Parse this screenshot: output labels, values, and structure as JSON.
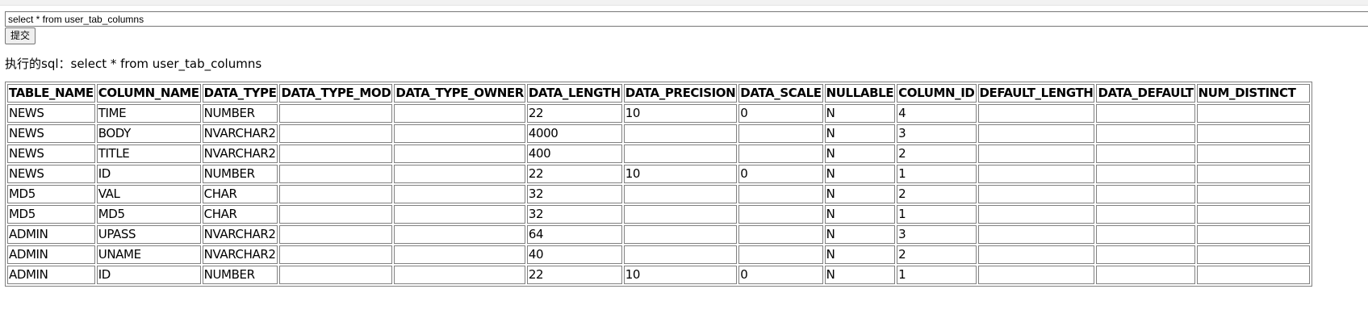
{
  "form": {
    "sql_value": "select * from user_tab_columns",
    "submit_label": "提交"
  },
  "executed": {
    "label": "执行的sql：",
    "query": "select * from user_tab_columns"
  },
  "table": {
    "columns": [
      "TABLE_NAME",
      "COLUMN_NAME",
      "DATA_TYPE",
      "DATA_TYPE_MOD",
      "DATA_TYPE_OWNER",
      "DATA_LENGTH",
      "DATA_PRECISION",
      "DATA_SCALE",
      "NULLABLE",
      "COLUMN_ID",
      "DEFAULT_LENGTH",
      "DATA_DEFAULT",
      "NUM_DISTINCT"
    ],
    "rows": [
      [
        "NEWS",
        "TIME",
        "NUMBER",
        "",
        "",
        "22",
        "10",
        "0",
        "N",
        "4",
        "",
        "",
        ""
      ],
      [
        "NEWS",
        "BODY",
        "NVARCHAR2",
        "",
        "",
        "4000",
        "",
        "",
        "N",
        "3",
        "",
        "",
        ""
      ],
      [
        "NEWS",
        "TITLE",
        "NVARCHAR2",
        "",
        "",
        "400",
        "",
        "",
        "N",
        "2",
        "",
        "",
        ""
      ],
      [
        "NEWS",
        "ID",
        "NUMBER",
        "",
        "",
        "22",
        "10",
        "0",
        "N",
        "1",
        "",
        "",
        ""
      ],
      [
        "MD5",
        "VAL",
        "CHAR",
        "",
        "",
        "32",
        "",
        "",
        "N",
        "2",
        "",
        "",
        ""
      ],
      [
        "MD5",
        "MD5",
        "CHAR",
        "",
        "",
        "32",
        "",
        "",
        "N",
        "1",
        "",
        "",
        ""
      ],
      [
        "ADMIN",
        "UPASS",
        "NVARCHAR2",
        "",
        "",
        "64",
        "",
        "",
        "N",
        "3",
        "",
        "",
        ""
      ],
      [
        "ADMIN",
        "UNAME",
        "NVARCHAR2",
        "",
        "",
        "40",
        "",
        "",
        "N",
        "2",
        "",
        "",
        ""
      ],
      [
        "ADMIN",
        "ID",
        "NUMBER",
        "",
        "",
        "22",
        "10",
        "0",
        "N",
        "1",
        "",
        "",
        ""
      ]
    ]
  }
}
